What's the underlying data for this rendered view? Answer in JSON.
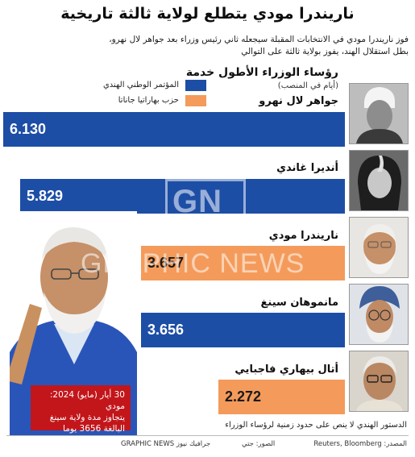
{
  "title": "ناريندرا مودي يتطلع لولاية ثالثة تاريخية",
  "subtitle_lines": [
    "فوز ناريندرا مودي في الانتخابات المقبلة سيجعله ثاني رئيس وزراء بعد جواهر لال نهرو،",
    "بطل استقلال الهند، يفوز بولاية ثالثة على التوالي"
  ],
  "section": {
    "title": "رؤساء الوزراء الأطول خدمة",
    "subtitle": "(أيام في المنصب)"
  },
  "legend": [
    {
      "label": "المؤتمر الوطني الهندي",
      "color": "#1d4ea6"
    },
    {
      "label": "حزب بهاراتيا جاناتا",
      "color": "#f49b5b"
    }
  ],
  "chart_data": {
    "type": "bar",
    "orientation": "horizontal",
    "title": "رؤساء الوزراء الأطول خدمة",
    "value_unit": "(أيام في المنصب)",
    "categories": [
      "جواهر لال نهرو",
      "أنديرا غاندي",
      "ناريندرا مودي",
      "مانموهان سينغ",
      "أتال بيهاري فاجبايي"
    ],
    "values": [
      6130,
      5829,
      3657,
      3656,
      2272
    ],
    "value_labels": [
      "6.130",
      "5.829",
      "3.657",
      "3.656",
      "2.272"
    ],
    "party": [
      "المؤتمر الوطني الهندي",
      "المؤتمر الوطني الهندي",
      "حزب بهاراتيا جاناتا",
      "المؤتمر الوطني الهندي",
      "حزب بهاراتيا جاناتا"
    ],
    "colors": [
      "#1d4ea6",
      "#1d4ea6",
      "#f49b5b",
      "#1d4ea6",
      "#f49b5b"
    ],
    "xlim": [
      0,
      6130
    ]
  },
  "callout": {
    "lines": [
      "30 أيار (مايو) 2024: مودي",
      "يتجاوز مدة ولاية سينغ",
      "البالغة 3656 يوما"
    ]
  },
  "watermark": {
    "logo": "GN",
    "text": "GRAPHIC NEWS"
  },
  "note": "الدستور الهندي لا ينص على حدود زمنية لرؤساء الوزراء",
  "footer": {
    "source": "المصدر: Reuters, Bloomberg",
    "photos": "الصور: جتي",
    "credit": "GRAPHIC NEWS جرافيك نيوز"
  },
  "colors": {
    "accent_red": "#c2161b"
  }
}
